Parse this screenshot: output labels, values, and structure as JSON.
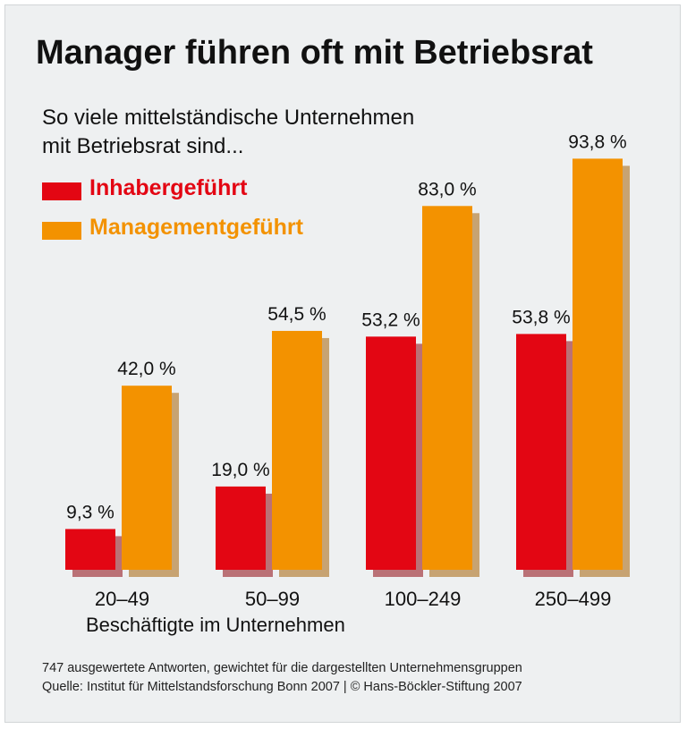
{
  "title": "Manager führen oft mit Betriebsrat",
  "subtitle_lines": [
    "So viele mittelständische Unternehmen",
    "mit Betriebsrat sind..."
  ],
  "legend": [
    {
      "label": "Inhabergeführt",
      "color": "#e30613"
    },
    {
      "label": "Managementgeführt",
      "color": "#f39200"
    }
  ],
  "footnote_lines": [
    "747 ausgewertete Antworten, gewichtet für die dargestellten Unternehmensgruppen",
    "Quelle: Institut für Mittelstandsforschung Bonn 2007 | © Hans-Böckler-Stiftung 2007"
  ],
  "chart_data": {
    "type": "bar",
    "title": "Manager führen oft mit Betriebsrat",
    "subtitle": "So viele mittelständische Unternehmen mit Betriebsrat sind...",
    "xlabel": "Beschäftigte im Unternehmen",
    "ylabel": "",
    "ylim": [
      0,
      100
    ],
    "grid": false,
    "legend_position": "top-left",
    "categories": [
      "20–49",
      "50–99",
      "100–249",
      "250–499"
    ],
    "series": [
      {
        "name": "Inhabergeführt",
        "color": "#e30613",
        "values": [
          9.3,
          19.0,
          53.2,
          53.8
        ],
        "labels": [
          "9,3 %",
          "19,0 %",
          "53,2 %",
          "53,8 %"
        ]
      },
      {
        "name": "Managementgeführt",
        "color": "#f39200",
        "values": [
          42.0,
          54.5,
          83.0,
          93.8
        ],
        "labels": [
          "42,0 %",
          "54,5 %",
          "83,0 %",
          "93,8 %"
        ]
      }
    ]
  }
}
